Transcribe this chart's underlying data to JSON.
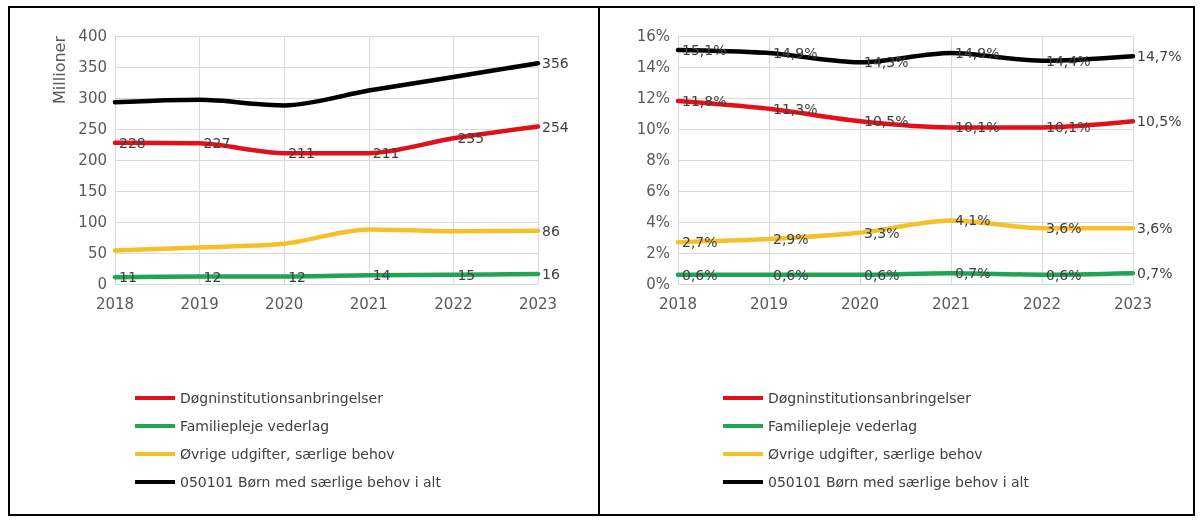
{
  "chart_data": [
    {
      "type": "line",
      "ylabel": "Millioner",
      "categories": [
        "2018",
        "2019",
        "2020",
        "2021",
        "2022",
        "2023"
      ],
      "ylim": [
        0,
        400
      ],
      "yticks": [
        0,
        50,
        100,
        150,
        200,
        250,
        300,
        350,
        400
      ],
      "grid": true,
      "legend": "bottom",
      "line_style": "solid",
      "marker": "none",
      "series": [
        {
          "name": "Døgninstitutionsanbringelser",
          "color": "#e3101a",
          "values": [
            228,
            227,
            211,
            211,
            235,
            254
          ],
          "value_labels": [
            "228",
            "227",
            "211",
            "211",
            "235",
            "254"
          ]
        },
        {
          "name": "Familiepleje vederlag",
          "color": "#1fa553",
          "values": [
            11,
            12,
            12,
            14,
            15,
            16
          ],
          "value_labels": [
            "11",
            "12",
            "12",
            "14",
            "15",
            "16"
          ]
        },
        {
          "name": "Øvrige udgifter, særlige behov",
          "color": "#f5c02a",
          "values": [
            54,
            59,
            65,
            88,
            85,
            86
          ],
          "value_labels": [
            null,
            null,
            null,
            null,
            null,
            "86"
          ]
        },
        {
          "name": "050101 Børn med særlige behov i alt",
          "color": "#000000",
          "values": [
            293,
            297,
            288,
            312,
            334,
            356
          ],
          "value_labels": [
            null,
            null,
            null,
            null,
            null,
            "356"
          ]
        }
      ]
    },
    {
      "type": "line",
      "categories": [
        "2018",
        "2019",
        "2020",
        "2021",
        "2022",
        "2023"
      ],
      "ylim": [
        0,
        16
      ],
      "yticks": [
        {
          "value": 0,
          "label": "0%"
        },
        {
          "value": 2,
          "label": "2%"
        },
        {
          "value": 4,
          "label": "4%"
        },
        {
          "value": 6,
          "label": "6%"
        },
        {
          "value": 8,
          "label": "8%"
        },
        {
          "value": 10,
          "label": "10%"
        },
        {
          "value": 12,
          "label": "12%"
        },
        {
          "value": 14,
          "label": "14%"
        },
        {
          "value": 16,
          "label": "16%"
        }
      ],
      "grid": true,
      "legend": "bottom",
      "line_style": "solid",
      "marker": "none",
      "series": [
        {
          "name": "Døgninstitutionsanbringelser",
          "color": "#e3101a",
          "values": [
            11.8,
            11.3,
            10.5,
            10.1,
            10.1,
            10.5
          ],
          "value_labels": [
            "11,8%",
            "11,3%",
            "10,5%",
            "10,1%",
            "10,1%",
            "10,5%"
          ]
        },
        {
          "name": "Familiepleje vederlag",
          "color": "#1fa553",
          "values": [
            0.6,
            0.6,
            0.6,
            0.7,
            0.6,
            0.7
          ],
          "value_labels": [
            "0,6%",
            "0,6%",
            "0,6%",
            "0,7%",
            "0,6%",
            "0,7%"
          ]
        },
        {
          "name": "Øvrige udgifter, særlige behov",
          "color": "#f5c02a",
          "values": [
            2.7,
            2.9,
            3.3,
            4.1,
            3.6,
            3.6
          ],
          "value_labels": [
            "2,7%",
            "2,9%",
            "3,3%",
            "4,1%",
            "3,6%",
            "3,6%"
          ]
        },
        {
          "name": "050101 Børn med særlige behov i alt",
          "color": "#000000",
          "values": [
            15.1,
            14.9,
            14.3,
            14.9,
            14.4,
            14.7
          ],
          "value_labels": [
            "15,1%",
            "14,9%",
            "14,3%",
            "14,9%",
            "14,4%",
            "14,7%"
          ]
        }
      ]
    }
  ]
}
